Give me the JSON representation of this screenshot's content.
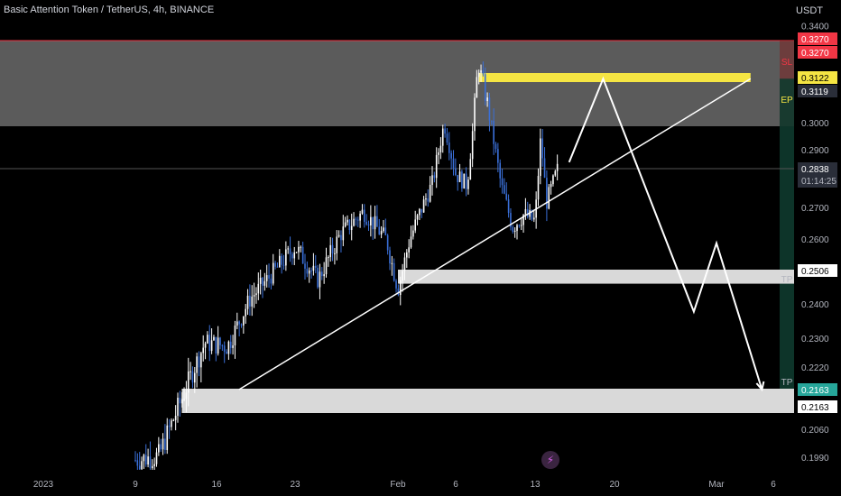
{
  "header": {
    "symbol_title": "Basic Attention Token / TetherUS, 4h, BINANCE",
    "currency": "USDT"
  },
  "colors": {
    "background": "#000000",
    "candle_up": "#ffffff",
    "candle_down": "#3a6fd8",
    "sl": "#f23645",
    "ep": "#f5e543",
    "tp": "#26a69a"
  },
  "chart_data": {
    "type": "candlestick",
    "ylim": [
      0.196,
      0.346
    ],
    "y_ticks": [
      "0.3400",
      "0.3000",
      "0.2900",
      "0.2700",
      "0.2600",
      "0.2400",
      "0.2300",
      "0.2220",
      "0.2060",
      "0.1990"
    ],
    "x_ticks": [
      "2023",
      "9",
      "16",
      "23",
      "Feb",
      "6",
      "13",
      "20",
      "Mar",
      "6"
    ],
    "x_tick_dates": [
      "2023-01-01",
      "2023-01-09",
      "2023-01-16",
      "2023-01-23",
      "2023-02-01",
      "2023-02-06",
      "2023-02-13",
      "2023-02-20",
      "2023-03-01",
      "2023-03-06"
    ],
    "price_path": [
      {
        "date": "2023-01-09",
        "price": 0.1985
      },
      {
        "date": "2023-01-11",
        "price": 0.1995
      },
      {
        "date": "2023-01-13",
        "price": 0.214
      },
      {
        "date": "2023-01-15",
        "price": 0.229
      },
      {
        "date": "2023-01-17",
        "price": 0.228
      },
      {
        "date": "2023-01-19",
        "price": 0.242
      },
      {
        "date": "2023-01-21",
        "price": 0.25
      },
      {
        "date": "2023-01-23",
        "price": 0.258
      },
      {
        "date": "2023-01-25",
        "price": 0.248
      },
      {
        "date": "2023-01-27",
        "price": 0.262
      },
      {
        "date": "2023-01-29",
        "price": 0.269
      },
      {
        "date": "2023-01-31",
        "price": 0.26
      },
      {
        "date": "2023-02-01",
        "price": 0.245
      },
      {
        "date": "2023-02-02",
        "price": 0.26
      },
      {
        "date": "2023-02-04",
        "price": 0.279
      },
      {
        "date": "2023-02-05",
        "price": 0.3
      },
      {
        "date": "2023-02-06",
        "price": 0.282
      },
      {
        "date": "2023-02-07",
        "price": 0.278
      },
      {
        "date": "2023-02-08",
        "price": 0.317
      },
      {
        "date": "2023-02-09",
        "price": 0.302
      },
      {
        "date": "2023-02-10",
        "price": 0.278
      },
      {
        "date": "2023-02-11",
        "price": 0.264
      },
      {
        "date": "2023-02-12",
        "price": 0.268
      },
      {
        "date": "2023-02-13",
        "price": 0.266
      },
      {
        "date": "2023-02-13T12:00",
        "price": 0.295
      },
      {
        "date": "2023-02-14",
        "price": 0.272
      },
      {
        "date": "2023-02-15",
        "price": 0.2838
      }
    ],
    "zones": [
      {
        "name": "SL zone",
        "from": 0.299,
        "to": 0.327
      },
      {
        "name": "Entry line",
        "price": 0.3122
      },
      {
        "name": "TP1 zone",
        "from": 0.249,
        "to": 0.2506
      },
      {
        "name": "TP2 zone",
        "from": 0.2115,
        "to": 0.2163
      }
    ],
    "trendline": {
      "from": {
        "date": "2023-01-18",
        "price": 0.2163
      },
      "to": {
        "date": "2023-03-04",
        "price": 0.3119
      }
    },
    "projection": [
      {
        "date": "2023-02-16",
        "price": 0.286
      },
      {
        "date": "2023-02-19",
        "price": 0.3119
      },
      {
        "date": "2023-02-27",
        "price": 0.238
      },
      {
        "date": "2023-03-01",
        "price": 0.259
      },
      {
        "date": "2023-03-05",
        "price": 0.2163
      }
    ]
  },
  "price_scale": {
    "sl_price": "0.3270",
    "sl_price_2": "0.3270",
    "ep_price": "0.3122",
    "ep_price_2": "0.3119",
    "current_price": "0.2838",
    "countdown": "01:14:25",
    "tp1_price": "0.2506",
    "tp2_price": "0.2163",
    "tp2_price_2": "0.2163",
    "sl_label": "SL",
    "ep_label": "EP",
    "tp1_label": "TP",
    "tp2_label": "TP"
  }
}
